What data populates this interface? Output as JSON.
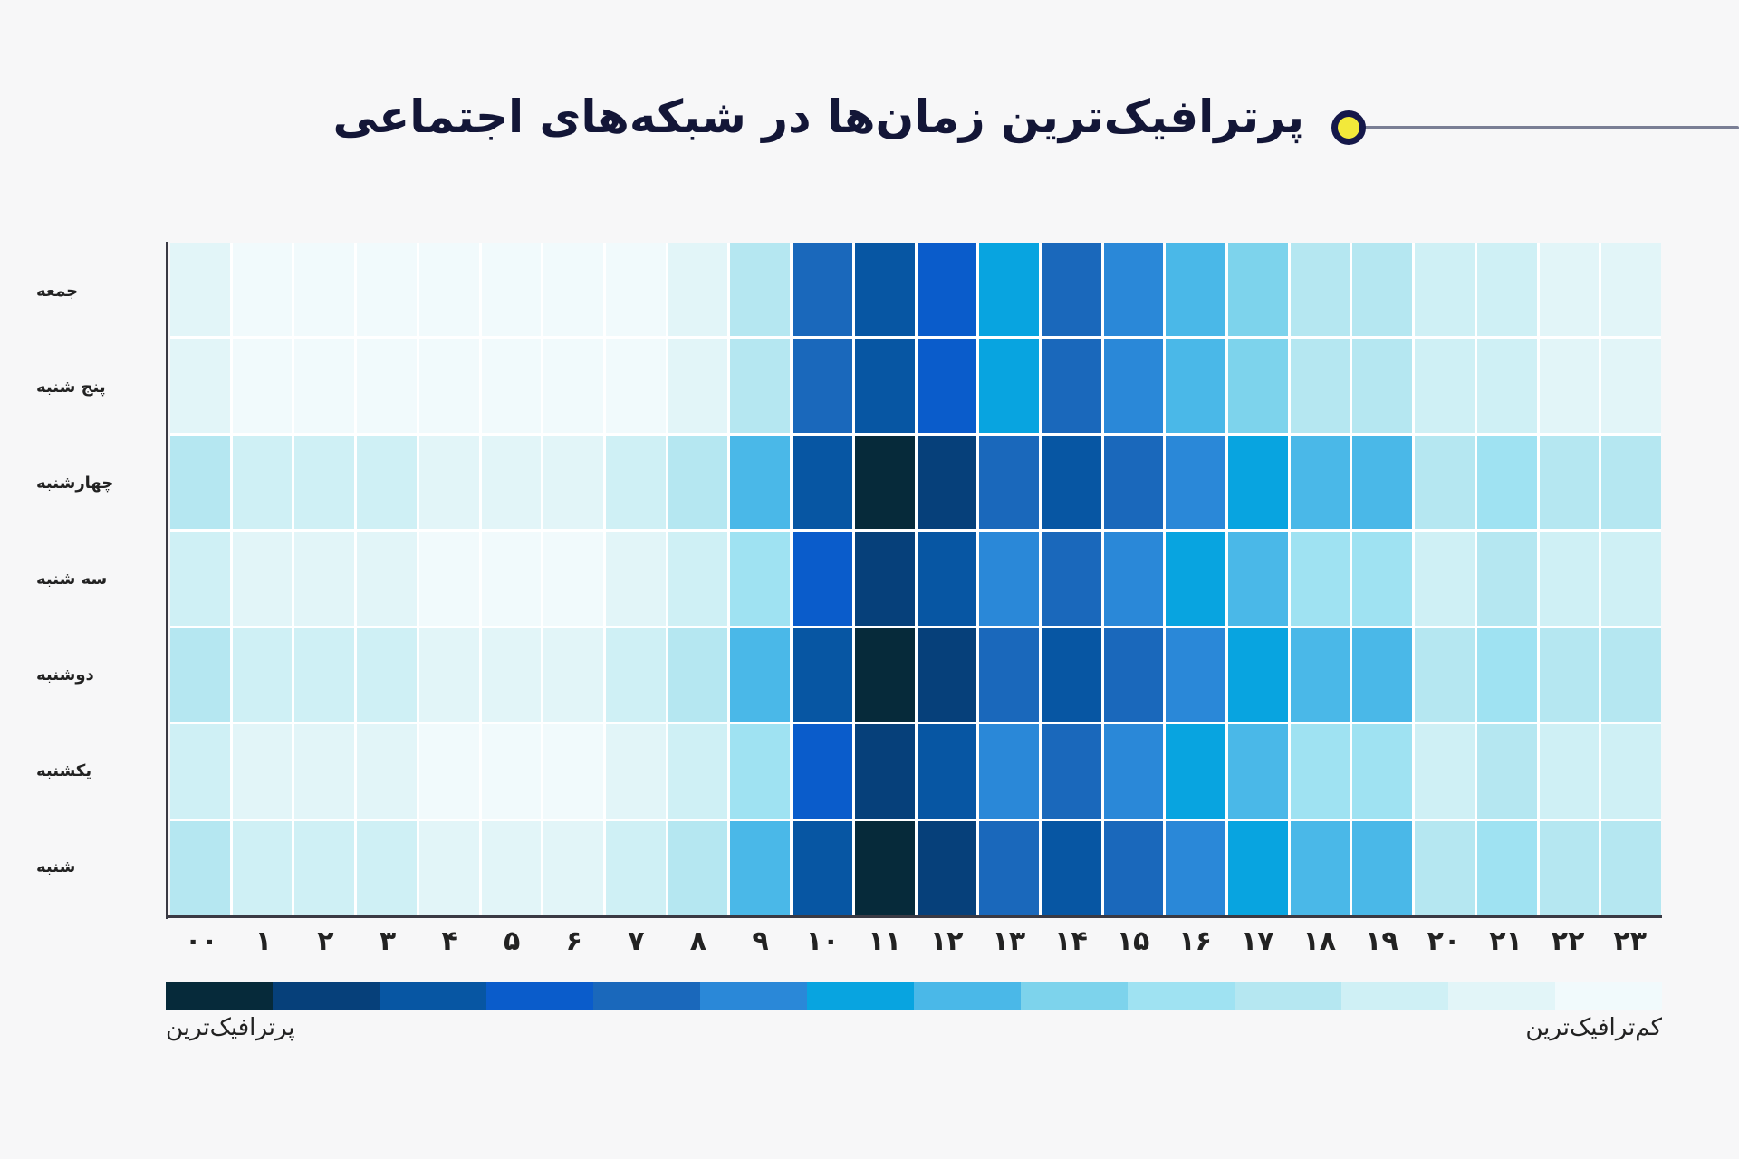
{
  "title": "پرترافیک‌ترین زمان‌ها در شبکه‌های اجتماعی",
  "legend": {
    "most_label": "پرترافیک‌ترین",
    "least_label": "کم‌ترافیک‌ترین",
    "palette": [
      "#062A3A",
      "#06407A",
      "#0756A3",
      "#0A5CCB",
      "#1A68BB",
      "#2A88D8",
      "#08A4E0",
      "#4AB8E8",
      "#7DD3EC",
      "#9FE2F2",
      "#B5E7F1",
      "#CFF0F5",
      "#E2F5F8",
      "#F1FAFC"
    ]
  },
  "colors": {
    "background": "#f7f7f8",
    "title": "#131637",
    "dot_fill": "#f2e93a",
    "dot_border": "#15184a",
    "axis": "#3a3a44"
  },
  "chart_data": {
    "type": "heatmap",
    "title": "پرترافیک‌ترین زمان‌ها در شبکه‌های اجتماعی",
    "xlabel": "",
    "ylabel": "",
    "x": [
      "۰۰",
      "۱",
      "۲",
      "۳",
      "۴",
      "۵",
      "۶",
      "۷",
      "۸",
      "۹",
      "۱۰",
      "۱۱",
      "۱۲",
      "۱۳",
      "۱۴",
      "۱۵",
      "۱۶",
      "۱۷",
      "۱۸",
      "۱۹",
      "۲۰",
      "۲۱",
      "۲۲",
      "۲۳"
    ],
    "y": [
      "جمعه",
      "پنج شنبه",
      "چهارشنبه",
      "سه شنبه",
      "دوشنبه",
      "یکشنبه",
      "شنبه"
    ],
    "scale_note": "level 0 = darkest (most traffic), level 13 = lightest (least traffic)",
    "levels": [
      [
        12,
        13,
        13,
        13,
        13,
        13,
        13,
        13,
        12,
        10,
        4,
        2,
        3,
        6,
        4,
        5,
        7,
        8,
        10,
        10,
        11,
        11,
        12,
        12
      ],
      [
        12,
        13,
        13,
        13,
        13,
        13,
        13,
        13,
        12,
        10,
        4,
        2,
        3,
        6,
        4,
        5,
        7,
        8,
        10,
        10,
        11,
        11,
        12,
        12
      ],
      [
        10,
        11,
        11,
        11,
        12,
        12,
        12,
        11,
        10,
        7,
        2,
        0,
        1,
        4,
        2,
        4,
        5,
        6,
        7,
        7,
        10,
        9,
        10,
        10
      ],
      [
        11,
        12,
        12,
        12,
        13,
        13,
        13,
        12,
        11,
        9,
        3,
        1,
        2,
        5,
        4,
        5,
        6,
        7,
        9,
        9,
        11,
        10,
        11,
        11
      ],
      [
        10,
        11,
        11,
        11,
        12,
        12,
        12,
        11,
        10,
        7,
        2,
        0,
        1,
        4,
        2,
        4,
        5,
        6,
        7,
        7,
        10,
        9,
        10,
        10
      ],
      [
        11,
        12,
        12,
        12,
        13,
        13,
        13,
        12,
        11,
        9,
        3,
        1,
        2,
        5,
        4,
        5,
        6,
        7,
        9,
        9,
        11,
        10,
        11,
        11
      ],
      [
        10,
        11,
        11,
        11,
        12,
        12,
        12,
        11,
        10,
        7,
        2,
        0,
        1,
        4,
        2,
        4,
        5,
        6,
        7,
        7,
        10,
        9,
        10,
        10
      ]
    ],
    "legend_position": "bottom",
    "grid": true
  }
}
